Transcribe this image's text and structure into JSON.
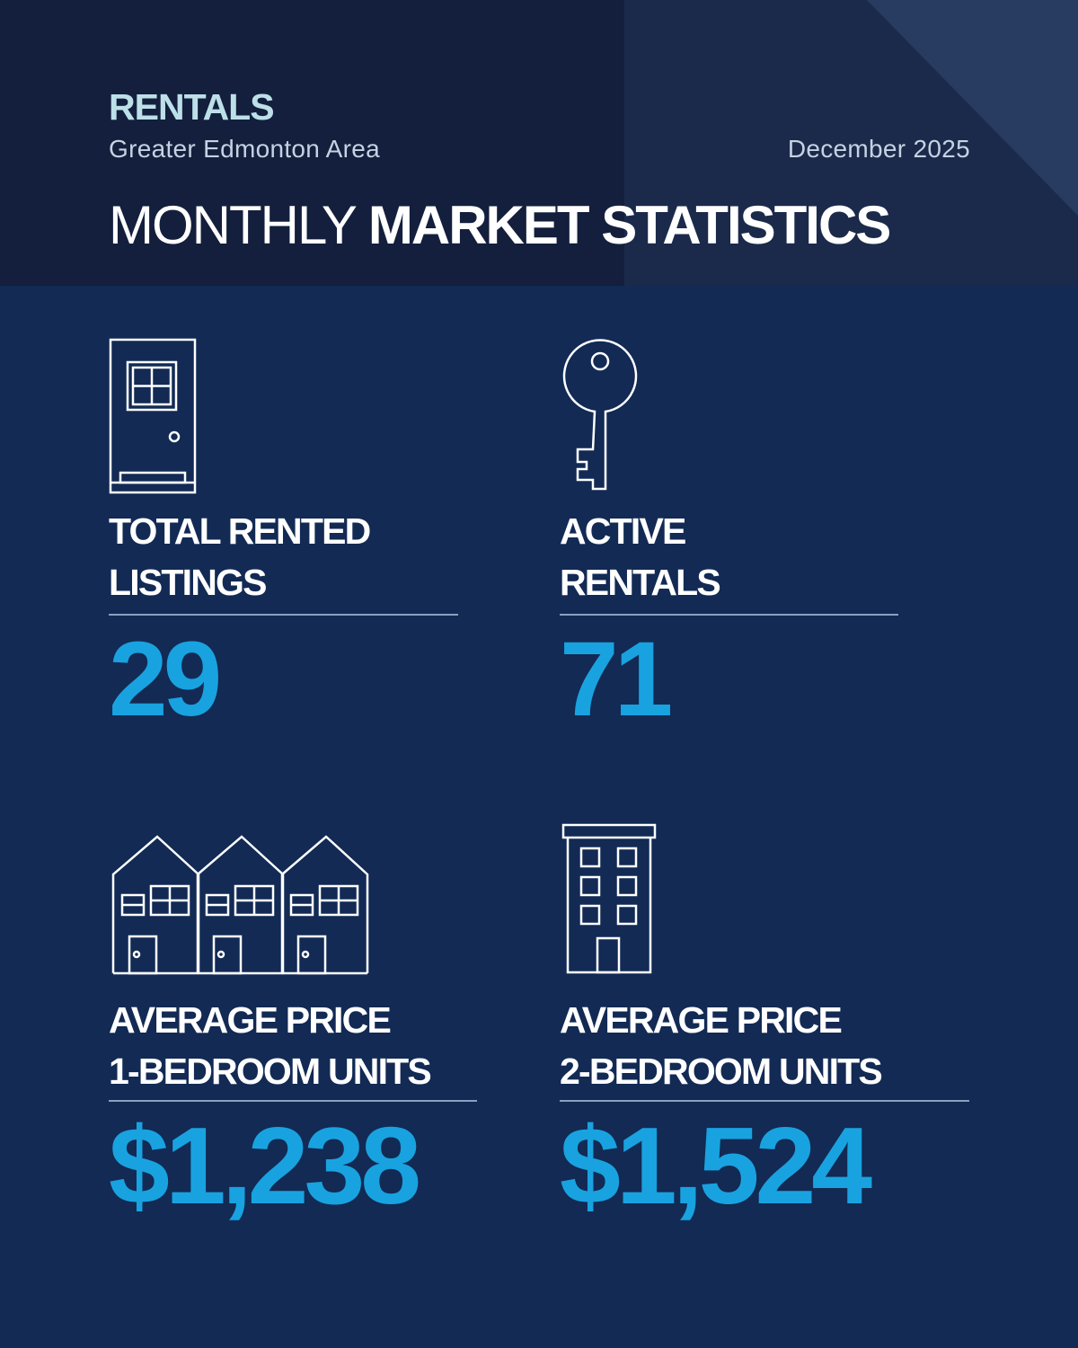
{
  "header": {
    "kicker": "RENTALS",
    "area": "Greater Edmonton Area",
    "date": "December 2025",
    "title_light": "MONTHLY",
    "title_bold": "MARKET STATISTICS"
  },
  "stats": [
    {
      "label_line1": "TOTAL RENTED",
      "label_line2": "LISTINGS",
      "value": "29",
      "icon": "door-icon"
    },
    {
      "label_line1": "ACTIVE",
      "label_line2": "RENTALS",
      "value": "71",
      "icon": "key-icon"
    },
    {
      "label_line1": "AVERAGE PRICE",
      "label_line2": "1-BEDROOM UNITS",
      "value": "$1,238",
      "icon": "townhouses-icon"
    },
    {
      "label_line1": "AVERAGE PRICE",
      "label_line2": "2-BEDROOM UNITS",
      "value": "$1,524",
      "icon": "apartment-building-icon"
    }
  ],
  "colors": {
    "background": "#122a54",
    "header_dark": "#131f3c",
    "header_mid": "#1b2a4b",
    "accent_value": "#19a2e0",
    "kicker": "#bde0e8"
  }
}
